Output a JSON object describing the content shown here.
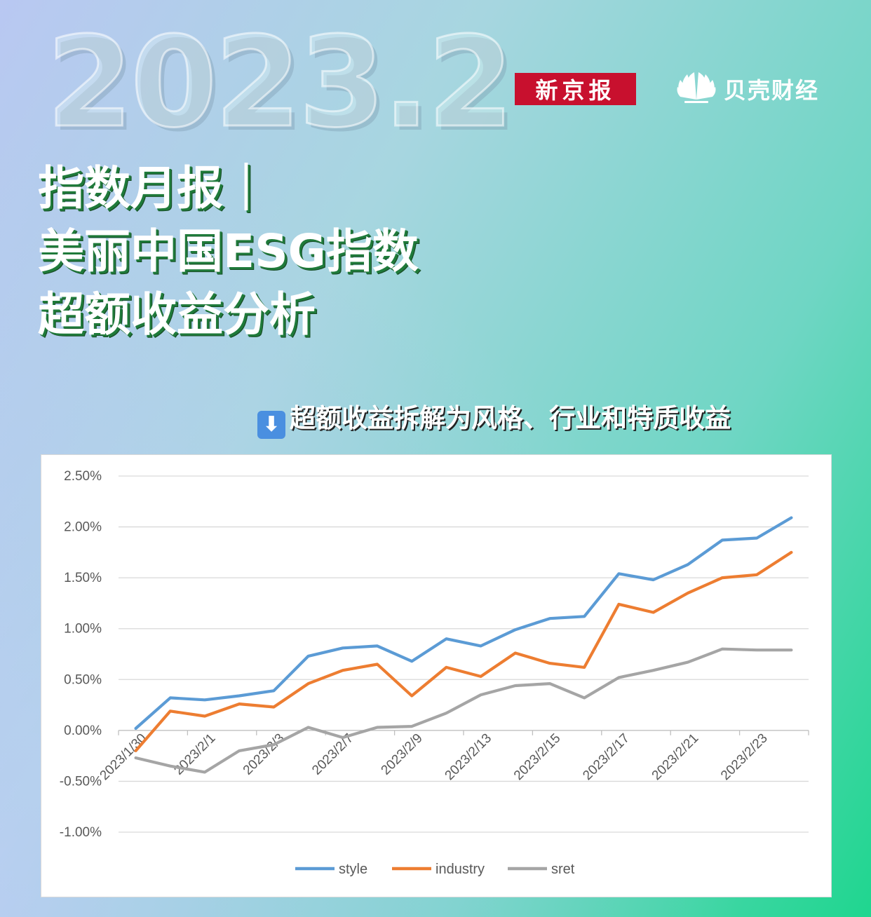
{
  "header": {
    "year": "2023.2",
    "logo_xjb": "新京报",
    "logo_bk": "贝壳财经"
  },
  "title": {
    "line1": "指数月报｜",
    "line2": "美丽中国ESG指数",
    "line3": "超额收益分析"
  },
  "subtitle": {
    "icon": "down-arrow-icon",
    "text": "超额收益拆解为风格、行业和特质收益"
  },
  "colors": {
    "style": "#5b9bd5",
    "industry": "#ed7d31",
    "sret": "#a5a5a5",
    "xjb_red": "#c8102e"
  },
  "chart_data": {
    "type": "line",
    "title": "",
    "xlabel": "",
    "ylabel": "",
    "ylim": [
      -1.0,
      2.5
    ],
    "ytick_labels": [
      "2.50%",
      "2.00%",
      "1.50%",
      "1.00%",
      "0.50%",
      "0.00%",
      "-0.50%",
      "-1.00%"
    ],
    "x": [
      "2023/1/30",
      "2023/1/31",
      "2023/2/1",
      "2023/2/2",
      "2023/2/3",
      "2023/2/6",
      "2023/2/7",
      "2023/2/8",
      "2023/2/9",
      "2023/2/10",
      "2023/2/13",
      "2023/2/14",
      "2023/2/15",
      "2023/2/16",
      "2023/2/17",
      "2023/2/20",
      "2023/2/21",
      "2023/2/22",
      "2023/2/23",
      "2023/2/24"
    ],
    "xtick_labels": [
      "2023/1/30",
      "2023/2/1",
      "2023/2/3",
      "2023/2/7",
      "2023/2/9",
      "2023/2/13",
      "2023/2/15",
      "2023/2/17",
      "2023/2/21",
      "2023/2/23"
    ],
    "series": [
      {
        "name": "style",
        "values": [
          0.02,
          0.32,
          0.3,
          0.34,
          0.39,
          0.73,
          0.81,
          0.83,
          0.68,
          0.9,
          0.83,
          0.99,
          1.1,
          1.12,
          1.54,
          1.48,
          1.63,
          1.87,
          1.89,
          2.09
        ]
      },
      {
        "name": "industry",
        "values": [
          -0.2,
          0.19,
          0.14,
          0.26,
          0.23,
          0.46,
          0.59,
          0.65,
          0.34,
          0.62,
          0.53,
          0.76,
          0.66,
          0.62,
          1.24,
          1.16,
          1.35,
          1.5,
          1.53,
          1.75
        ]
      },
      {
        "name": "sret",
        "values": [
          -0.27,
          -0.35,
          -0.41,
          -0.2,
          -0.14,
          0.03,
          -0.07,
          0.03,
          0.04,
          0.17,
          0.35,
          0.44,
          0.46,
          0.32,
          0.52,
          0.59,
          0.67,
          0.8,
          0.79,
          0.79
        ]
      }
    ],
    "grid": true,
    "legend": "bottom"
  }
}
